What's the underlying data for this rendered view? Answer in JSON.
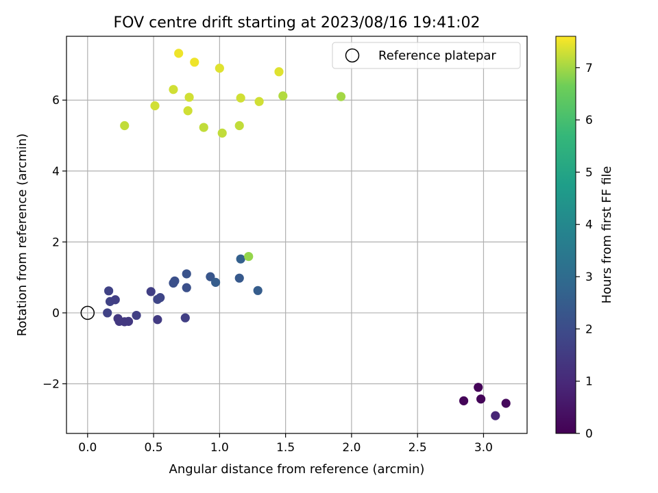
{
  "chart_data": {
    "type": "scatter",
    "title": "FOV centre drift starting at 2023/08/16 19:41:02",
    "xlabel": "Angular distance from reference (arcmin)",
    "ylabel": "Rotation from reference (arcmin)",
    "xlim": [
      -0.16,
      3.33
    ],
    "ylim": [
      -3.4,
      7.8
    ],
    "xticks": [
      0.0,
      0.5,
      1.0,
      1.5,
      2.0,
      2.5,
      3.0
    ],
    "xtick_labels": [
      "0.0",
      "0.5",
      "1.0",
      "1.5",
      "2.0",
      "2.5",
      "3.0"
    ],
    "yticks": [
      -2,
      0,
      2,
      4,
      6
    ],
    "ytick_labels": [
      "−2",
      "0",
      "2",
      "4",
      "6"
    ],
    "grid": true,
    "legend": {
      "placement": "top-right",
      "entries": [
        "Reference platepar"
      ]
    },
    "reference_point": {
      "x": 0.0,
      "y": 0.0
    },
    "colorbar": {
      "label": "Hours from first FF file",
      "colormap": "viridis",
      "range": [
        0,
        7.6
      ],
      "ticks": [
        0,
        1,
        2,
        3,
        4,
        5,
        6,
        7
      ],
      "tick_labels": [
        "0",
        "1",
        "2",
        "3",
        "4",
        "5",
        "6",
        "7"
      ]
    },
    "points": [
      {
        "x": 2.96,
        "y": -2.1,
        "h": 0.1
      },
      {
        "x": 2.85,
        "y": -2.48,
        "h": 0.1
      },
      {
        "x": 2.98,
        "y": -2.43,
        "h": 0.1
      },
      {
        "x": 3.17,
        "y": -2.55,
        "h": 0.2
      },
      {
        "x": 3.09,
        "y": -2.9,
        "h": 0.9
      },
      {
        "x": 0.15,
        "y": 0.0,
        "h": 1.7
      },
      {
        "x": 0.16,
        "y": 0.62,
        "h": 1.7
      },
      {
        "x": 0.17,
        "y": 0.32,
        "h": 1.7
      },
      {
        "x": 0.21,
        "y": 0.37,
        "h": 1.6
      },
      {
        "x": 0.23,
        "y": -0.16,
        "h": 1.4
      },
      {
        "x": 0.24,
        "y": -0.24,
        "h": 1.4
      },
      {
        "x": 0.28,
        "y": -0.25,
        "h": 1.4
      },
      {
        "x": 0.31,
        "y": -0.24,
        "h": 1.4
      },
      {
        "x": 0.37,
        "y": -0.07,
        "h": 1.6
      },
      {
        "x": 0.48,
        "y": 0.6,
        "h": 1.6
      },
      {
        "x": 0.53,
        "y": 0.38,
        "h": 1.8
      },
      {
        "x": 0.55,
        "y": 0.43,
        "h": 1.8
      },
      {
        "x": 0.53,
        "y": -0.19,
        "h": 1.5
      },
      {
        "x": 0.74,
        "y": -0.14,
        "h": 1.6
      },
      {
        "x": 0.65,
        "y": 0.84,
        "h": 2.1
      },
      {
        "x": 0.66,
        "y": 0.9,
        "h": 2.1
      },
      {
        "x": 0.75,
        "y": 1.1,
        "h": 2.2
      },
      {
        "x": 0.75,
        "y": 0.71,
        "h": 2.1
      },
      {
        "x": 0.93,
        "y": 1.02,
        "h": 2.3
      },
      {
        "x": 0.97,
        "y": 0.86,
        "h": 2.5
      },
      {
        "x": 1.15,
        "y": 0.98,
        "h": 2.4
      },
      {
        "x": 1.16,
        "y": 1.52,
        "h": 2.6
      },
      {
        "x": 1.29,
        "y": 0.63,
        "h": 2.5
      },
      {
        "x": 1.22,
        "y": 1.59,
        "h": 6.9
      },
      {
        "x": 0.28,
        "y": 5.28,
        "h": 7.2
      },
      {
        "x": 0.51,
        "y": 5.84,
        "h": 7.3
      },
      {
        "x": 0.65,
        "y": 6.3,
        "h": 7.3
      },
      {
        "x": 0.69,
        "y": 7.32,
        "h": 7.5
      },
      {
        "x": 0.76,
        "y": 5.7,
        "h": 7.3
      },
      {
        "x": 0.77,
        "y": 6.08,
        "h": 7.3
      },
      {
        "x": 0.81,
        "y": 7.07,
        "h": 7.5
      },
      {
        "x": 0.88,
        "y": 5.23,
        "h": 7.2
      },
      {
        "x": 1.0,
        "y": 6.9,
        "h": 7.4
      },
      {
        "x": 1.02,
        "y": 5.07,
        "h": 7.2
      },
      {
        "x": 1.15,
        "y": 5.28,
        "h": 7.2
      },
      {
        "x": 1.16,
        "y": 6.06,
        "h": 7.3
      },
      {
        "x": 1.3,
        "y": 5.96,
        "h": 7.3
      },
      {
        "x": 1.45,
        "y": 6.8,
        "h": 7.4
      },
      {
        "x": 1.48,
        "y": 6.12,
        "h": 7.1
      },
      {
        "x": 1.92,
        "y": 6.1,
        "h": 7.0
      }
    ]
  }
}
